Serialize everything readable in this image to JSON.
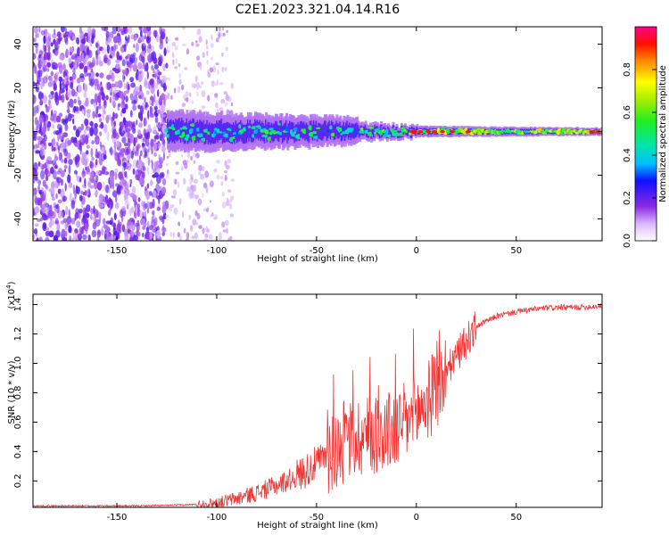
{
  "title": "C2E1.2023.321.04.14.R16",
  "chart_data": [
    {
      "type": "heatmap",
      "xlabel": "Height of straight line (km)",
      "ylabel": "Frequency (Hz)",
      "xlim": [
        -192,
        93
      ],
      "ylim": [
        -50,
        48
      ],
      "xticks": [
        "-150",
        "-100",
        "-50",
        "0",
        "50"
      ],
      "yticks": [
        "40",
        "20",
        "0",
        "-20",
        "-40"
      ],
      "colorbar": {
        "label": "Normalized spectral amplitude",
        "range": [
          0.0,
          1.0
        ],
        "ticks": [
          "0.0",
          "0.2",
          "0.4",
          "0.6",
          "0.8"
        ]
      },
      "features": {
        "scatter_region_km": [
          -192,
          -125
        ],
        "sparse_region_km": [
          -125,
          -92
        ],
        "main_line_center_hz": 0,
        "main_line_start_km": -125,
        "main_line_end_km": 93
      }
    },
    {
      "type": "line",
      "xlabel": "Height of straight line (km)",
      "ylabel": "SNR (10 * v/v)",
      "scale_label": "(x10",
      "scale_exp": "4",
      "exp_close": ")",
      "xlim": [
        -192,
        93
      ],
      "ylim": [
        0.02,
        1.47
      ],
      "xticks": [
        "-150",
        "-100",
        "-50",
        "0",
        "50"
      ],
      "yticks": [
        "0.2",
        "0.4",
        "0.6",
        "0.8",
        "1.0",
        "1.2",
        "1.4"
      ],
      "series": [
        {
          "color": "#ee3333",
          "x": [
            -192,
            -140,
            -120,
            -110,
            -100,
            -90,
            -80,
            -70,
            -60,
            -50,
            -40,
            -30,
            -20,
            -10,
            0,
            10,
            20,
            30,
            40,
            50,
            60,
            70,
            80,
            93
          ],
          "y": [
            0.03,
            0.03,
            0.035,
            0.04,
            0.05,
            0.08,
            0.12,
            0.17,
            0.23,
            0.32,
            0.42,
            0.5,
            0.52,
            0.55,
            0.65,
            0.82,
            1.05,
            1.25,
            1.32,
            1.35,
            1.37,
            1.38,
            1.38,
            1.39
          ]
        }
      ]
    }
  ]
}
